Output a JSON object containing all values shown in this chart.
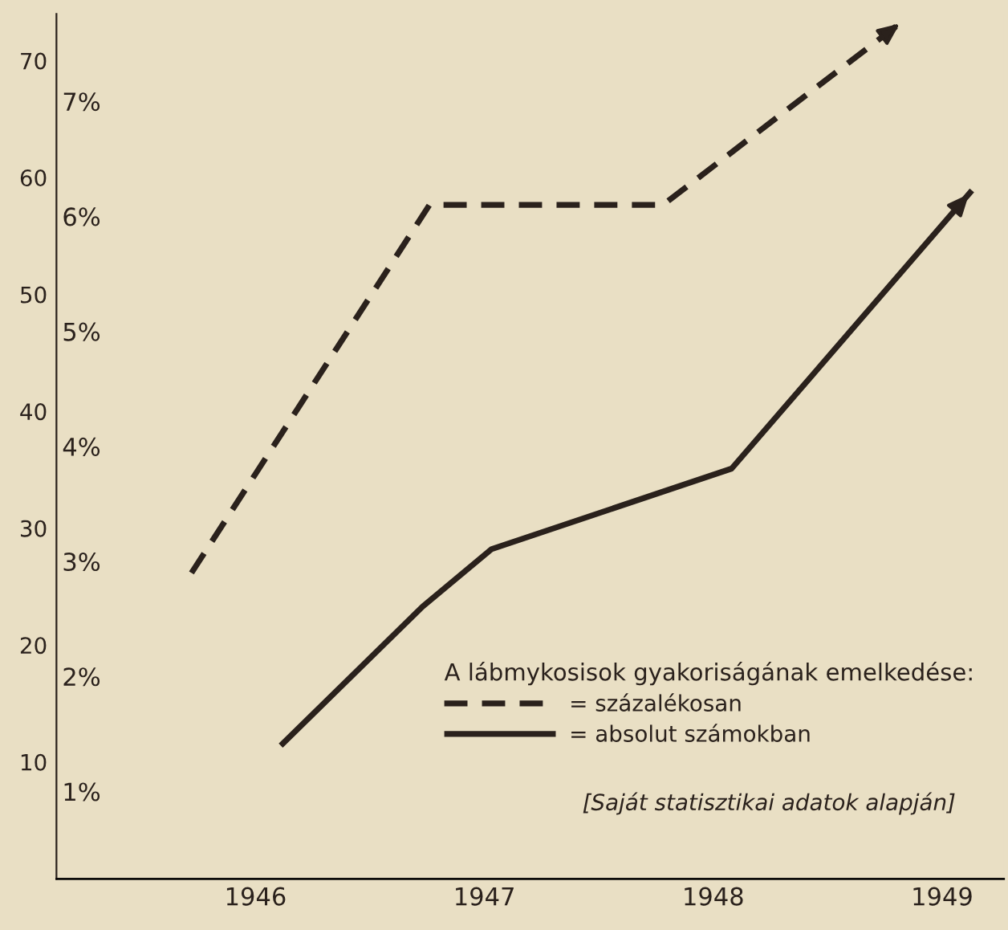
{
  "chart_data": {
    "type": "line",
    "legend_title": "A lábmykosisok gyakoriságának emelkedése:",
    "annotations": [
      "[Saját statisztikai adatok alapján]"
    ],
    "series": [
      {
        "name": "= százalékosan",
        "color": "#2a211c",
        "line_style": "dashed",
        "axis": "y2",
        "x": [
          1945.72,
          1946.76,
          1947.78,
          1948.83
        ],
        "values": [
          2.9,
          6.1,
          6.1,
          7.7
        ]
      },
      {
        "name": "= absolut számokban",
        "color": "#2a211c",
        "line_style": "solid",
        "x": [
          1946.11,
          1946.73,
          1947.03,
          1948.08,
          1949.13
        ],
        "values": [
          11.4,
          23.3,
          28.2,
          35.1,
          58.9
        ]
      }
    ],
    "xlim": [
      1945.13,
      1949.27
    ],
    "xticks": [
      1946,
      1947,
      1948,
      1949
    ],
    "ylim": [
      0,
      74
    ],
    "yticks": [
      10,
      20,
      30,
      40,
      50,
      60,
      70
    ],
    "y2lim": [
      0.24,
      7.76
    ],
    "y2ticks": [
      {
        "value": 1,
        "label": "1%"
      },
      {
        "value": 2,
        "label": "2%"
      },
      {
        "value": 3,
        "label": "3%"
      },
      {
        "value": 4,
        "label": "4%"
      },
      {
        "value": 5,
        "label": "5%"
      },
      {
        "value": 6,
        "label": "6%"
      },
      {
        "value": 7,
        "label": "7%"
      }
    ],
    "grid": false,
    "legend": "bottom right",
    "marker": "none"
  }
}
